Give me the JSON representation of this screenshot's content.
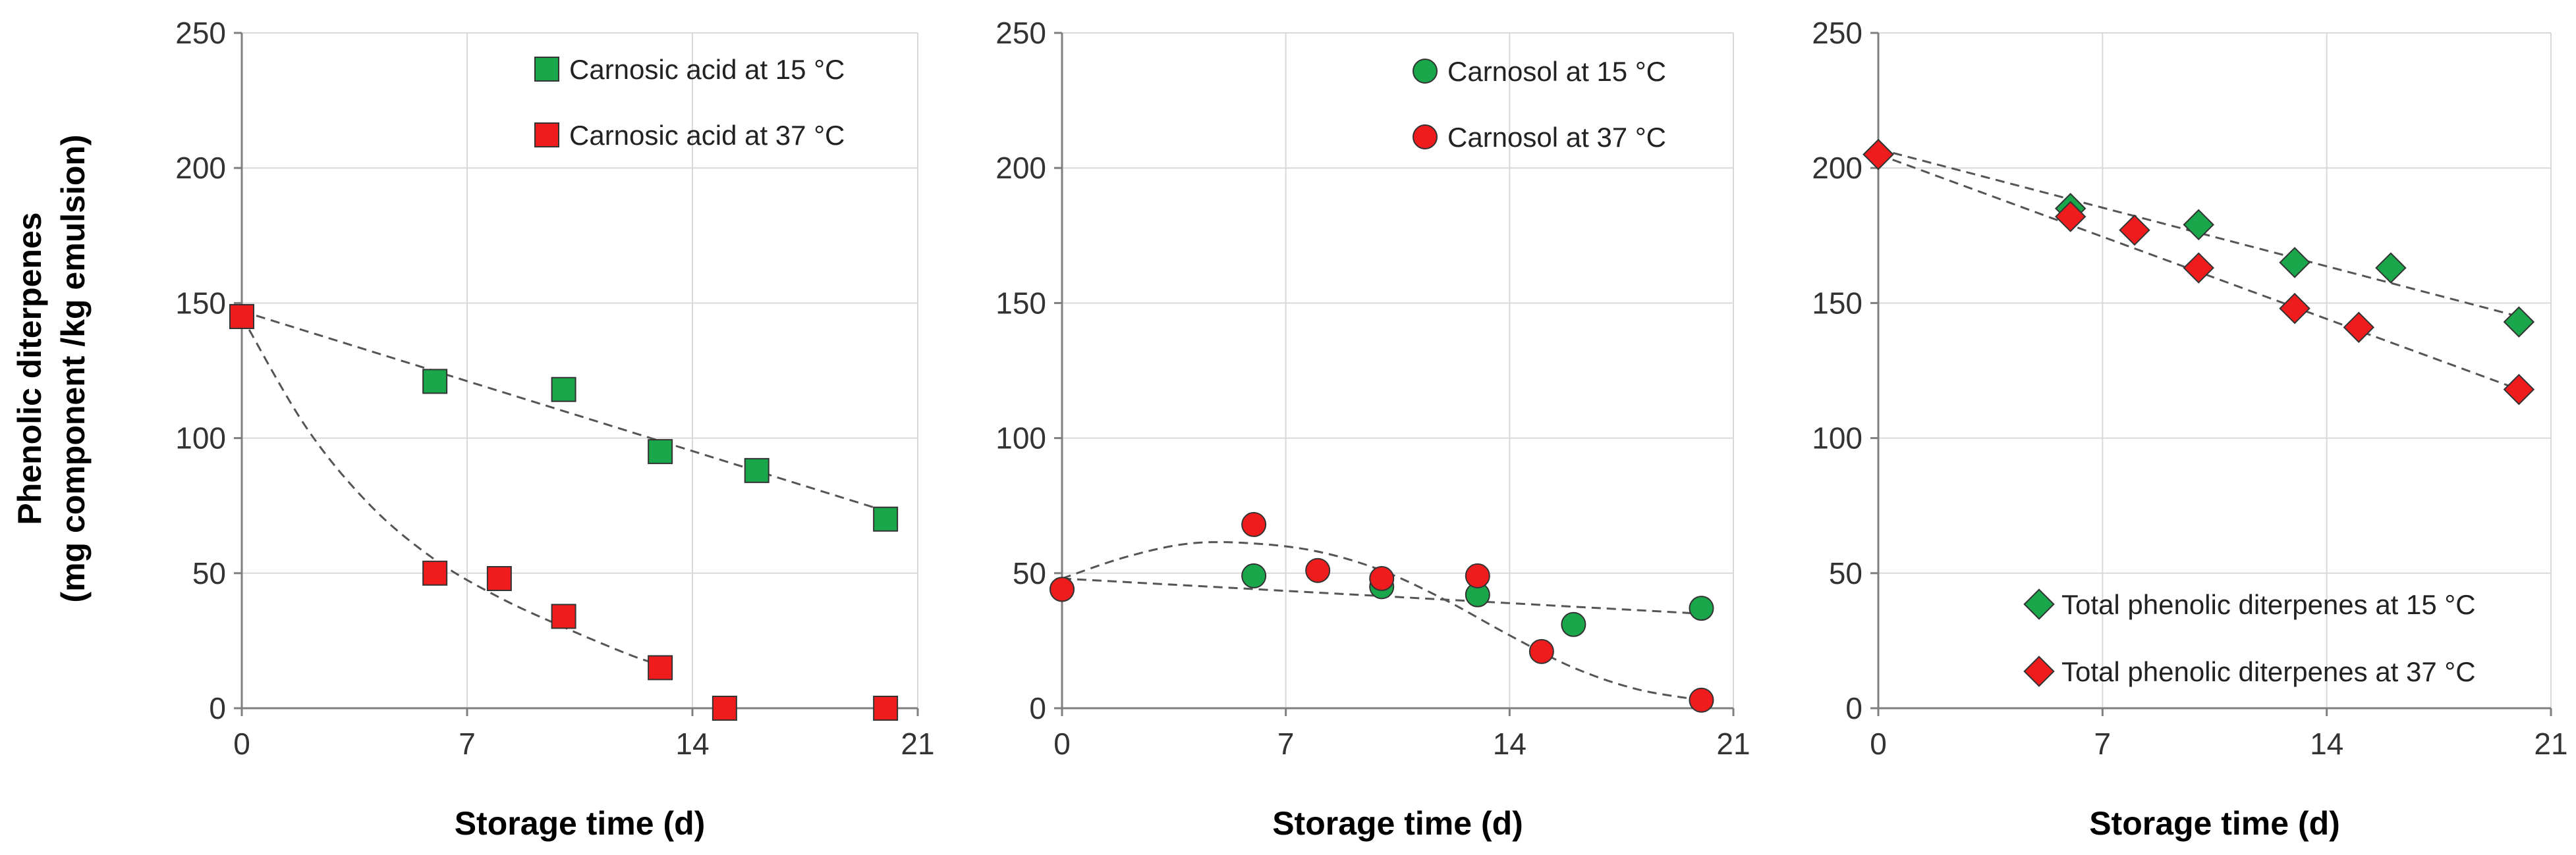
{
  "colors": {
    "green": "#1aa64a",
    "red": "#ee1c1c",
    "marker_edge": "#333333"
  },
  "chart_data": [
    {
      "type": "scatter",
      "xlabel": "Storage time (d)",
      "ylabel_line1": "Phenolic diterpenes",
      "ylabel_line2": "(mg component  /kg emulsion)",
      "xlim": [
        0,
        21
      ],
      "ylim": [
        0,
        250
      ],
      "xticks": [
        0,
        7,
        14,
        21
      ],
      "yticks": [
        0,
        50,
        100,
        150,
        200,
        250
      ],
      "legend_position": "top-right",
      "series": [
        {
          "name": "Carnosic acid at 15 °C",
          "marker": "square",
          "color": "#1aa64a",
          "x": [
            0,
            6,
            10,
            13,
            16,
            20
          ],
          "y": [
            145,
            121,
            118,
            95,
            88,
            70
          ],
          "trend": {
            "kind": "linear",
            "x": [
              0,
              20
            ],
            "y": [
              147,
              73
            ]
          }
        },
        {
          "name": "Carnosic acid at 37 °C",
          "marker": "square",
          "color": "#ee1c1c",
          "x": [
            0,
            6,
            8,
            10,
            13,
            15,
            20
          ],
          "y": [
            145,
            50,
            48,
            34,
            15,
            0,
            0
          ],
          "trend": {
            "kind": "curve",
            "x": [
              0,
              2,
              4,
              6,
              8,
              10,
              12,
              13
            ],
            "y": [
              145,
              104,
              75,
              55,
              41,
              30,
              20,
              16
            ]
          }
        }
      ]
    },
    {
      "type": "scatter",
      "xlabel": "Storage time (d)",
      "xlim": [
        0,
        21
      ],
      "ylim": [
        0,
        250
      ],
      "xticks": [
        0,
        7,
        14,
        21
      ],
      "yticks": [
        0,
        50,
        100,
        150,
        200,
        250
      ],
      "legend_position": "top-right",
      "series": [
        {
          "name": "Carnosol at 15 °C",
          "marker": "circle",
          "color": "#1aa64a",
          "x": [
            0,
            6,
            10,
            13,
            16,
            20
          ],
          "y": [
            44,
            49,
            45,
            42,
            31,
            37
          ],
          "trend": {
            "kind": "linear",
            "x": [
              0,
              20
            ],
            "y": [
              48,
              35
            ]
          }
        },
        {
          "name": "Carnosol at 37 °C",
          "marker": "circle",
          "color": "#ee1c1c",
          "x": [
            0,
            6,
            8,
            10,
            13,
            15,
            20
          ],
          "y": [
            44,
            68,
            51,
            48,
            49,
            21,
            3
          ],
          "trend": {
            "kind": "curve",
            "x": [
              0,
              2,
              4,
              6,
              8,
              10,
              12,
              14,
              16,
              18,
              20
            ],
            "y": [
              48,
              56,
              61,
              61,
              58,
              51,
              40,
              27,
              15,
              7,
              3
            ]
          }
        }
      ]
    },
    {
      "type": "scatter",
      "xlabel": "Storage time (d)",
      "xlim": [
        0,
        21
      ],
      "ylim": [
        0,
        250
      ],
      "xticks": [
        0,
        7,
        14,
        21
      ],
      "yticks": [
        0,
        50,
        100,
        150,
        200,
        250
      ],
      "legend_position": "bottom-right",
      "series": [
        {
          "name": "Total phenolic diterpenes at 15 °C",
          "marker": "diamond",
          "color": "#1aa64a",
          "x": [
            0,
            6,
            10,
            13,
            16,
            20
          ],
          "y": [
            205,
            185,
            179,
            165,
            163,
            143
          ],
          "trend": {
            "kind": "linear",
            "x": [
              0,
              20
            ],
            "y": [
              207,
              145
            ]
          }
        },
        {
          "name": "Total phenolic diterpenes at 37 °C",
          "marker": "diamond",
          "color": "#ee1c1c",
          "x": [
            0,
            6,
            8,
            10,
            13,
            15,
            20
          ],
          "y": [
            205,
            182,
            177,
            163,
            148,
            141,
            118
          ],
          "trend": {
            "kind": "linear",
            "x": [
              0,
              20
            ],
            "y": [
              205,
              118
            ]
          }
        }
      ]
    }
  ]
}
